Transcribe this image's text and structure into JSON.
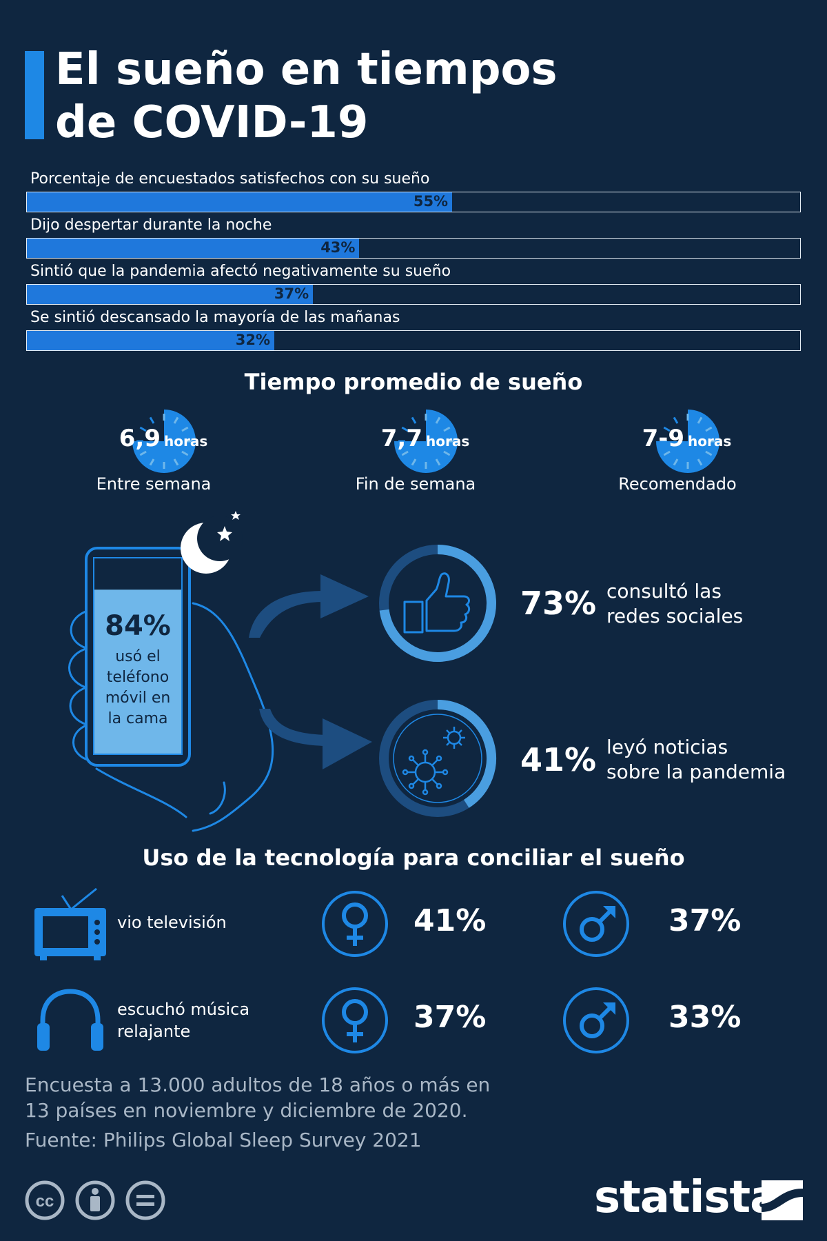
{
  "title": {
    "line1": "El sueño en tiempos",
    "line2": "de COVID-19"
  },
  "chart_data": [
    {
      "type": "bar",
      "orientation": "horizontal",
      "categories": [
        "Porcentaje de encuestados satisfechos con su sueño",
        "Dijo despertar durante la noche",
        "Sintió que la pandemia afectó negativamente su sueño",
        "Se sintió descansado la mayoría de las mañanas"
      ],
      "values": [
        55,
        43,
        37,
        32
      ],
      "value_labels": [
        "55%",
        "43%",
        "37%",
        "32%"
      ],
      "xlim": [
        0,
        100
      ],
      "colors": {
        "fill": "#1f78dc",
        "track_border": "#e6eef5"
      }
    }
  ],
  "sleep": {
    "title": "Tiempo promedio de sueño",
    "unit": "horas",
    "items": [
      {
        "value": "6,9",
        "caption": "Entre semana"
      },
      {
        "value": "7,7",
        "caption": "Fin de semana"
      },
      {
        "value": "7-9",
        "caption": "Recomendado"
      }
    ]
  },
  "phone": {
    "pct": "84%",
    "lines": [
      "usó el",
      "teléfono",
      "móvil en",
      "la cama"
    ],
    "fill_fraction": 0.84
  },
  "stats": [
    {
      "pct": "73%",
      "value": 73,
      "desc_lines": [
        "consultó las",
        "redes sociales"
      ],
      "icon": "thumbs-up-icon"
    },
    {
      "pct": "41%",
      "value": 41,
      "desc_lines": [
        "leyó noticias",
        "sobre la pandemia"
      ],
      "icon": "virus-icon"
    }
  ],
  "tech": {
    "title": "Uso de la tecnología para conciliar el sueño",
    "rows": [
      {
        "label_lines": [
          "vio televisión"
        ],
        "icon": "tv-icon",
        "female": "41%",
        "male": "37%"
      },
      {
        "label_lines": [
          "escuchó música",
          "relajante"
        ],
        "icon": "headphones-icon",
        "female": "37%",
        "male": "33%"
      }
    ]
  },
  "footer": {
    "note_lines": [
      "Encuesta a 13.000 adultos de 18 años o más en",
      "13 países en noviembre y diciembre de 2020."
    ],
    "source": "Fuente: Philips Global Sleep Survey 2021",
    "brand": "statista"
  },
  "colors": {
    "background": "#0f2640",
    "accent": "#1e88e5",
    "light_blue": "#4a9ee0",
    "phone_fill": "#6fb7ea",
    "dark_arrow": "#1d4d80",
    "muted_text": "#a9b7c6"
  }
}
